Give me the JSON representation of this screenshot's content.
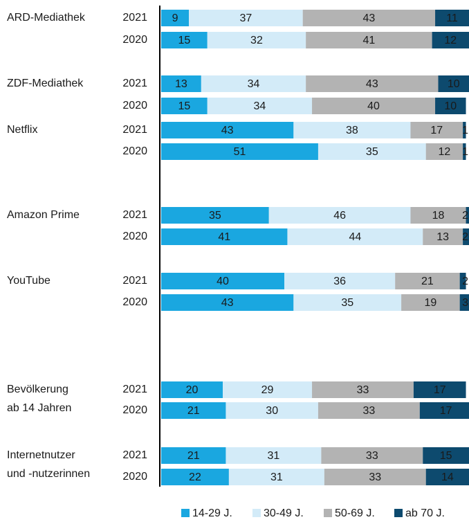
{
  "chart_data": {
    "type": "bar",
    "orientation": "horizontal",
    "stacked": true,
    "groups": [
      [
        "ARD-Mediathek"
      ],
      [
        "ZDF-Mediathek"
      ],
      [
        "Netflix"
      ],
      [
        "Amazon Prime"
      ],
      [
        "YouTube"
      ],
      [
        "Bevölkerung",
        "ab 14 Jahren"
      ],
      [
        "Internetnutzer",
        "und -nutzerinnen"
      ]
    ],
    "categories": [
      "2021",
      "2020",
      "2021",
      "2020",
      "2021",
      "2020",
      "2021",
      "2020",
      "2021",
      "2020",
      "2021",
      "2020",
      "2021",
      "2020"
    ],
    "series": [
      {
        "name": "14-29 J.",
        "color": "#1aa7e0",
        "values": [
          9,
          15,
          13,
          15,
          43,
          51,
          35,
          41,
          40,
          43,
          20,
          21,
          21,
          22
        ]
      },
      {
        "name": "30-49 J.",
        "color": "#d3ebf8",
        "values": [
          37,
          32,
          34,
          34,
          38,
          35,
          46,
          44,
          36,
          35,
          29,
          30,
          31,
          31
        ]
      },
      {
        "name": "50-69 J.",
        "color": "#b3b3b3",
        "values": [
          43,
          41,
          43,
          40,
          17,
          12,
          18,
          13,
          21,
          19,
          33,
          33,
          33,
          33
        ]
      },
      {
        "name": "ab 70 J.",
        "color": "#0d4a6e",
        "values": [
          11,
          12,
          10,
          10,
          1,
          1,
          2,
          2,
          2,
          3,
          17,
          17,
          15,
          14
        ]
      }
    ],
    "xlim": [
      0,
      100
    ]
  }
}
